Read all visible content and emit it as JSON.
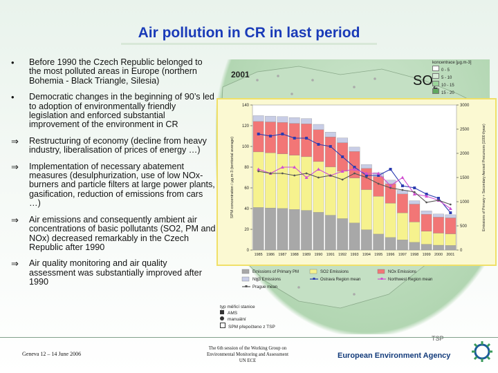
{
  "slide": {
    "title": "Air pollution in CR in last period",
    "bullets": [
      {
        "marker": "•",
        "text": "Before 1990 the Czech Republic belonged to the most polluted areas in Europe (northern Bohemia - Black Triangle, Silesia)"
      },
      {
        "marker": "•",
        "text": "Democratic changes in the beginning of 90’s led to adoption of environmentally friendly legislation and enforced substantial improvement of the environment in CR"
      },
      {
        "marker": "⇒",
        "text": "Restructuring of economy (decline from heavy industry, liberalisation of prices of energy …)"
      },
      {
        "marker": "⇒",
        "text": "Implementation of necessary abatement measures (desulphurization, use of low NOx-burners and particle filters at large power plants, gasification, reduction of emissions from cars …)"
      },
      {
        "marker": "⇒",
        "text": "Air emissions and consequently ambient air concentrations of basic pollutants (SO2, PM and NOx) decreased remarkably in the Czech Republic after 1990"
      },
      {
        "marker": "⇒",
        "text": "Air quality monitoring and air quality assessment was substantially improved after 1990"
      }
    ]
  },
  "map": {
    "year": "2001",
    "pollutant": "SO2",
    "legend_title": "koncentrace [µg.m-3]",
    "legend_classes": [
      "0 - 5",
      "5 - 10",
      "10 - 15",
      "15 - 20"
    ],
    "stations_title": "typ měřicí stanice",
    "stations": [
      "AMS",
      "manuální",
      "SPM přepočteno z TSP"
    ],
    "tsp_label": "TSP"
  },
  "chart_data": {
    "type": "bar",
    "categories": [
      "1985",
      "1986",
      "1987",
      "1988",
      "1989",
      "1990",
      "1991",
      "1992",
      "1993",
      "1994",
      "1995",
      "1996",
      "1997",
      "1998",
      "1999",
      "2000",
      "2001"
    ],
    "ylabel": "SPM concentration / µg.m-3 (territorial average)",
    "ylabel2": "Emissions of Primary + Secondary Aerosol Precursors (1000 t/year)",
    "ylim": [
      0,
      140
    ],
    "ylim2": [
      0,
      3000
    ],
    "yticks": [
      0,
      20,
      40,
      60,
      80,
      100,
      120,
      140
    ],
    "yticks2": [
      0,
      500,
      1000,
      1500,
      2000,
      2500,
      3000
    ],
    "series": [
      {
        "name": "Emissions of Primary PM",
        "axis": "right",
        "color": "#a8a8a8",
        "values": [
          880,
          870,
          860,
          840,
          820,
          780,
          720,
          650,
          560,
          420,
          330,
          260,
          210,
          160,
          120,
          100,
          95
        ]
      },
      {
        "name": "SO2 Emissions",
        "axis": "right",
        "color": "#f6f28e",
        "values": [
          1150,
          1140,
          1130,
          1120,
          1110,
          1050,
          1000,
          980,
          930,
          830,
          780,
          710,
          560,
          420,
          270,
          250,
          240
        ]
      },
      {
        "name": "NOx Emissions",
        "axis": "right",
        "color": "#f27676",
        "values": [
          630,
          640,
          650,
          660,
          680,
          660,
          620,
          590,
          550,
          440,
          410,
          400,
          390,
          370,
          350,
          330,
          330
        ]
      },
      {
        "name": "NH3 Emissions",
        "axis": "right",
        "color": "#c8cde6",
        "values": [
          120,
          120,
          120,
          120,
          110,
          110,
          100,
          100,
          90,
          80,
          80,
          75,
          75,
          70,
          70,
          65,
          65
        ]
      },
      {
        "name": "Ostrava Region mean",
        "axis": "left",
        "color": "#2b3bb0",
        "values": [
          112,
          110,
          112,
          108,
          108,
          102,
          100,
          90,
          80,
          72,
          72,
          78,
          62,
          60,
          54,
          50,
          36
        ]
      },
      {
        "name": "Northwest Region mean",
        "axis": "left",
        "color": "#d04fd0",
        "values": [
          78,
          74,
          80,
          80,
          70,
          78,
          72,
          76,
          78,
          74,
          74,
          62,
          70,
          54,
          52,
          48,
          40
        ]
      },
      {
        "name": "Prague mean",
        "axis": "left",
        "color": "#555555",
        "values": [
          76,
          74,
          74,
          72,
          74,
          70,
          72,
          68,
          74,
          70,
          64,
          60,
          58,
          56,
          46,
          48,
          44
        ]
      }
    ]
  },
  "footer": {
    "left": "Geneva 12 – 14 June 2006",
    "middle": [
      "The 6th session of the Working Group on",
      "Environmental Monitoring and Assessment",
      "UN ECE"
    ],
    "agency": "European Environment Agency"
  },
  "colors": {
    "title": "#1a3bb8",
    "accent": "#f0e068"
  }
}
